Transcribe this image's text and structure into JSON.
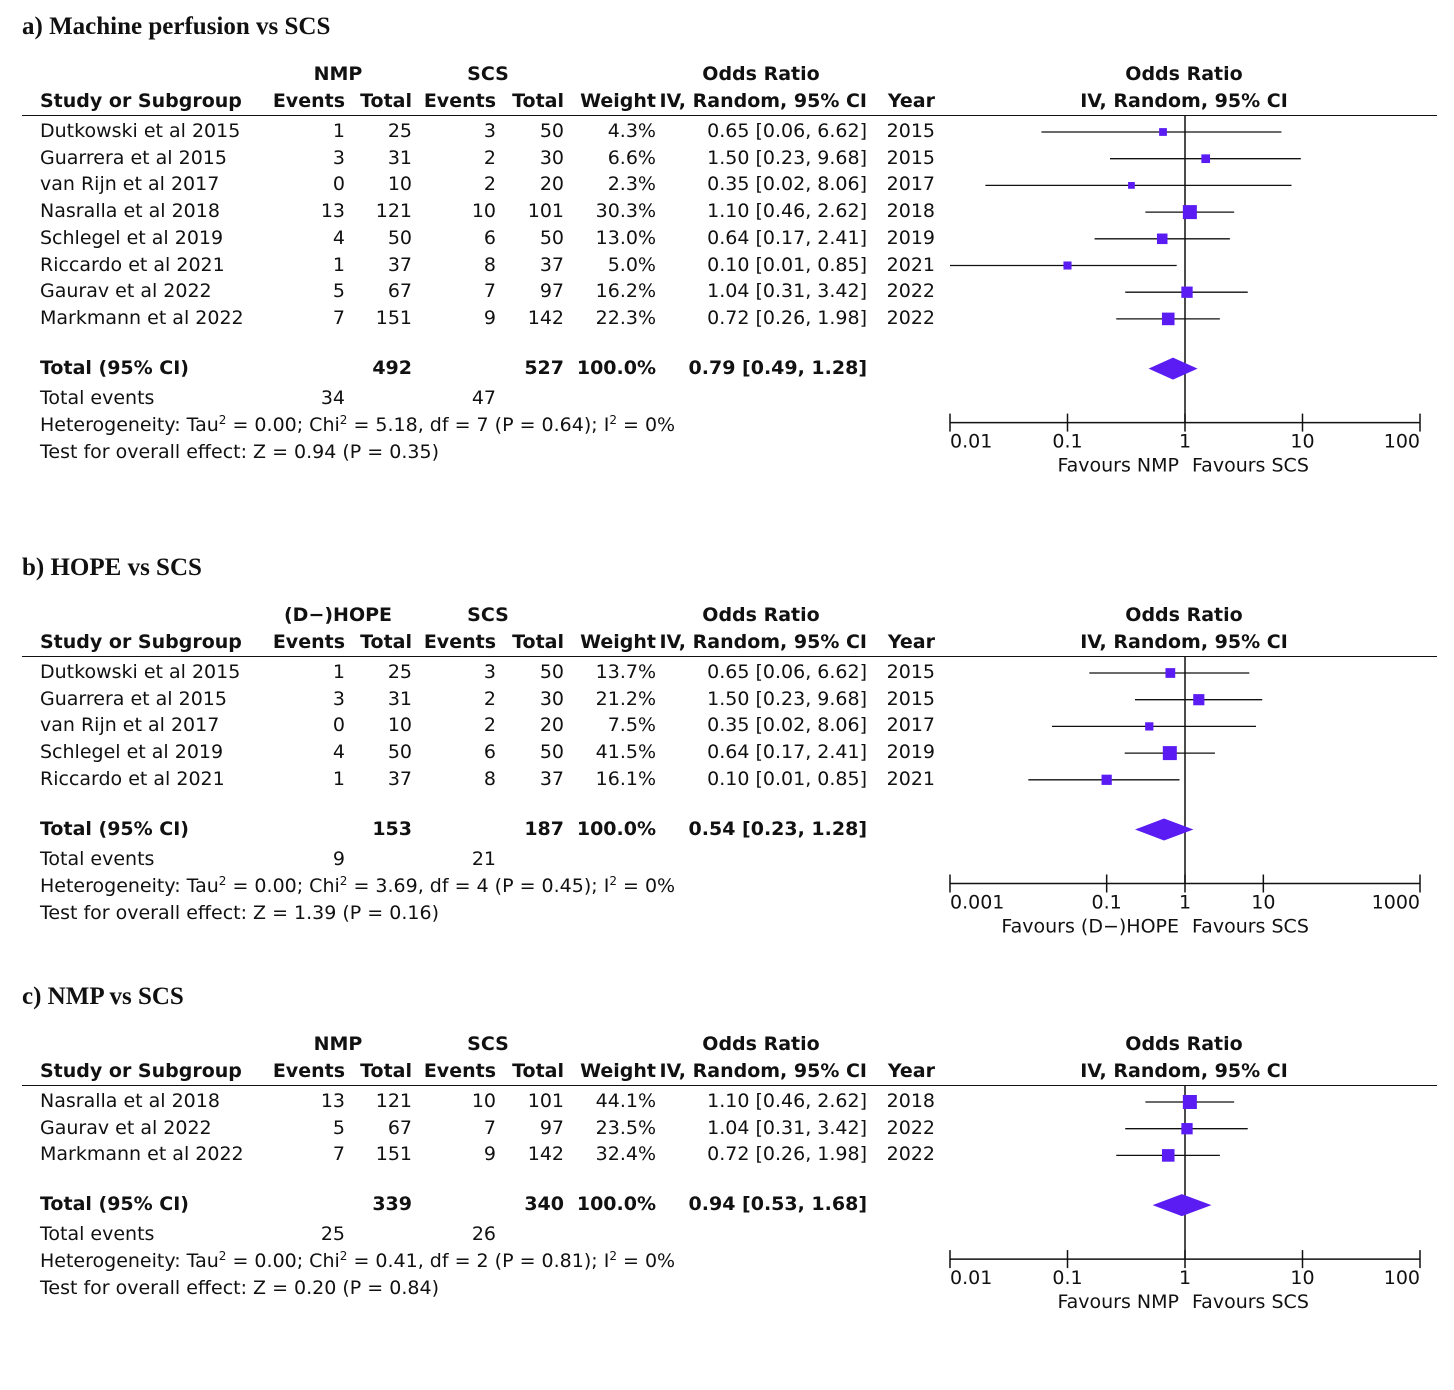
{
  "panels": [
    {
      "title": "a) Machine perfusion vs SCS",
      "group1": "NMP",
      "group2": "SCS",
      "col_study": "Study or Subgroup",
      "col_events": "Events",
      "col_total": "Total",
      "col_weight": "Weight",
      "col_or": "Odds Ratio",
      "col_or_sub": "IV, Random, 95% CI",
      "col_year": "Year",
      "rows": [
        {
          "study": "Dutkowski et al 2015",
          "e1": "1",
          "t1": "25",
          "e2": "3",
          "t2": "50",
          "weight": "4.3%",
          "ci": "0.65 [0.06, 6.62]",
          "year": "2015",
          "or": 0.65,
          "lo": 0.06,
          "hi": 6.62,
          "w": 4.3
        },
        {
          "study": "Guarrera et al 2015",
          "e1": "3",
          "t1": "31",
          "e2": "2",
          "t2": "30",
          "weight": "6.6%",
          "ci": "1.50 [0.23, 9.68]",
          "year": "2015",
          "or": 1.5,
          "lo": 0.23,
          "hi": 9.68,
          "w": 6.6
        },
        {
          "study": "van Rijn et al 2017",
          "e1": "0",
          "t1": "10",
          "e2": "2",
          "t2": "20",
          "weight": "2.3%",
          "ci": "0.35 [0.02, 8.06]",
          "year": "2017",
          "or": 0.35,
          "lo": 0.02,
          "hi": 8.06,
          "w": 2.3
        },
        {
          "study": "Nasralla et al 2018",
          "e1": "13",
          "t1": "121",
          "e2": "10",
          "t2": "101",
          "weight": "30.3%",
          "ci": "1.10 [0.46, 2.62]",
          "year": "2018",
          "or": 1.1,
          "lo": 0.46,
          "hi": 2.62,
          "w": 30.3
        },
        {
          "study": "Schlegel et al 2019",
          "e1": "4",
          "t1": "50",
          "e2": "6",
          "t2": "50",
          "weight": "13.0%",
          "ci": "0.64 [0.17, 2.41]",
          "year": "2019",
          "or": 0.64,
          "lo": 0.17,
          "hi": 2.41,
          "w": 13.0
        },
        {
          "study": "Riccardo et al 2021",
          "e1": "1",
          "t1": "37",
          "e2": "8",
          "t2": "37",
          "weight": "5.0%",
          "ci": "0.10 [0.01, 0.85]",
          "year": "2021",
          "or": 0.1,
          "lo": 0.01,
          "hi": 0.85,
          "w": 5.0
        },
        {
          "study": "Gaurav et al 2022",
          "e1": "5",
          "t1": "67",
          "e2": "7",
          "t2": "97",
          "weight": "16.2%",
          "ci": "1.04 [0.31, 3.42]",
          "year": "2022",
          "or": 1.04,
          "lo": 0.31,
          "hi": 3.42,
          "w": 16.2
        },
        {
          "study": "Markmann et al 2022",
          "e1": "7",
          "t1": "151",
          "e2": "9",
          "t2": "142",
          "weight": "22.3%",
          "ci": "0.72 [0.26, 1.98]",
          "year": "2022",
          "or": 0.72,
          "lo": 0.26,
          "hi": 1.98,
          "w": 22.3
        }
      ],
      "total": {
        "label": "Total (95% CI)",
        "t1": "492",
        "t2": "527",
        "weight": "100.0%",
        "ci": "0.79 [0.49, 1.28]",
        "or": 0.79,
        "lo": 0.49,
        "hi": 1.28
      },
      "events": {
        "label": "Total events",
        "e1": "34",
        "e2": "47"
      },
      "het_a": "Heterogeneity: Tau",
      "het_b": " = 0.00; Chi",
      "het_c": " = 5.18, df = 7 (P = 0.64); I",
      "het_d": " = 0%",
      "sup2": "2",
      "overall": "Test for overall effect: Z = 0.94 (P = 0.35)",
      "axis": {
        "min": 0.01,
        "max": 100,
        "ticks": [
          {
            "v": 0.01,
            "label": "0.01"
          },
          {
            "v": 0.1,
            "label": "0.1"
          },
          {
            "v": 1,
            "label": "1"
          },
          {
            "v": 10,
            "label": "10"
          },
          {
            "v": 100,
            "label": "100"
          }
        ]
      },
      "favours_left": "Favours NMP",
      "favours_right": "Favours SCS"
    },
    {
      "title": "b) HOPE vs SCS",
      "group1": "(D−)HOPE",
      "group2": "SCS",
      "col_study": "Study or Subgroup",
      "col_events": "Events",
      "col_total": "Total",
      "col_weight": "Weight",
      "col_or": "Odds Ratio",
      "col_or_sub": "IV, Random, 95% CI",
      "col_year": "Year",
      "rows": [
        {
          "study": "Dutkowski et al 2015",
          "e1": "1",
          "t1": "25",
          "e2": "3",
          "t2": "50",
          "weight": "13.7%",
          "ci": "0.65 [0.06, 6.62]",
          "year": "2015",
          "or": 0.65,
          "lo": 0.06,
          "hi": 6.62,
          "w": 13.7
        },
        {
          "study": "Guarrera et al 2015",
          "e1": "3",
          "t1": "31",
          "e2": "2",
          "t2": "30",
          "weight": "21.2%",
          "ci": "1.50 [0.23, 9.68]",
          "year": "2015",
          "or": 1.5,
          "lo": 0.23,
          "hi": 9.68,
          "w": 21.2
        },
        {
          "study": "van Rijn et al 2017",
          "e1": "0",
          "t1": "10",
          "e2": "2",
          "t2": "20",
          "weight": "7.5%",
          "ci": "0.35 [0.02, 8.06]",
          "year": "2017",
          "or": 0.35,
          "lo": 0.02,
          "hi": 8.06,
          "w": 7.5
        },
        {
          "study": "Schlegel et al 2019",
          "e1": "4",
          "t1": "50",
          "e2": "6",
          "t2": "50",
          "weight": "41.5%",
          "ci": "0.64 [0.17, 2.41]",
          "year": "2019",
          "or": 0.64,
          "lo": 0.17,
          "hi": 2.41,
          "w": 41.5
        },
        {
          "study": "Riccardo et al 2021",
          "e1": "1",
          "t1": "37",
          "e2": "8",
          "t2": "37",
          "weight": "16.1%",
          "ci": "0.10 [0.01, 0.85]",
          "year": "2021",
          "or": 0.1,
          "lo": 0.01,
          "hi": 0.85,
          "w": 16.1
        }
      ],
      "total": {
        "label": "Total (95% CI)",
        "t1": "153",
        "t2": "187",
        "weight": "100.0%",
        "ci": "0.54 [0.23, 1.28]",
        "or": 0.54,
        "lo": 0.23,
        "hi": 1.28
      },
      "events": {
        "label": "Total events",
        "e1": "9",
        "e2": "21"
      },
      "het_a": "Heterogeneity: Tau",
      "het_b": " = 0.00; Chi",
      "het_c": " = 3.69, df = 4 (P = 0.45); I",
      "het_d": " = 0%",
      "sup2": "2",
      "overall": "Test for overall effect: Z = 1.39 (P = 0.16)",
      "axis": {
        "min": 0.001,
        "max": 1000,
        "ticks": [
          {
            "v": 0.001,
            "label": "0.001"
          },
          {
            "v": 0.1,
            "label": "0.1"
          },
          {
            "v": 1,
            "label": "1"
          },
          {
            "v": 10,
            "label": "10"
          },
          {
            "v": 1000,
            "label": "1000"
          }
        ]
      },
      "favours_left": "Favours (D−)HOPE",
      "favours_right": "Favours SCS"
    },
    {
      "title": "c) NMP vs SCS",
      "group1": "NMP",
      "group2": "SCS",
      "col_study": "Study or Subgroup",
      "col_events": "Events",
      "col_total": "Total",
      "col_weight": "Weight",
      "col_or": "Odds Ratio",
      "col_or_sub": "IV, Random, 95% CI",
      "col_year": "Year",
      "rows": [
        {
          "study": "Nasralla et al 2018",
          "e1": "13",
          "t1": "121",
          "e2": "10",
          "t2": "101",
          "weight": "44.1%",
          "ci": "1.10 [0.46, 2.62]",
          "year": "2018",
          "or": 1.1,
          "lo": 0.46,
          "hi": 2.62,
          "w": 44.1
        },
        {
          "study": "Gaurav et al 2022",
          "e1": "5",
          "t1": "67",
          "e2": "7",
          "t2": "97",
          "weight": "23.5%",
          "ci": "1.04 [0.31, 3.42]",
          "year": "2022",
          "or": 1.04,
          "lo": 0.31,
          "hi": 3.42,
          "w": 23.5
        },
        {
          "study": "Markmann et al 2022",
          "e1": "7",
          "t1": "151",
          "e2": "9",
          "t2": "142",
          "weight": "32.4%",
          "ci": "0.72 [0.26, 1.98]",
          "year": "2022",
          "or": 0.72,
          "lo": 0.26,
          "hi": 1.98,
          "w": 32.4
        }
      ],
      "total": {
        "label": "Total (95% CI)",
        "t1": "339",
        "t2": "340",
        "weight": "100.0%",
        "ci": "0.94 [0.53, 1.68]",
        "or": 0.94,
        "lo": 0.53,
        "hi": 1.68
      },
      "events": {
        "label": "Total events",
        "e1": "25",
        "e2": "26"
      },
      "het_a": "Heterogeneity: Tau",
      "het_b": " = 0.00; Chi",
      "het_c": " = 0.41, df = 2 (P = 0.81); I",
      "het_d": " = 0%",
      "sup2": "2",
      "overall": "Test for overall effect: Z = 0.20 (P = 0.84)",
      "axis": {
        "min": 0.01,
        "max": 100,
        "ticks": [
          {
            "v": 0.01,
            "label": "0.01"
          },
          {
            "v": 0.1,
            "label": "0.1"
          },
          {
            "v": 1,
            "label": "1"
          },
          {
            "v": 10,
            "label": "10"
          },
          {
            "v": 100,
            "label": "100"
          }
        ]
      },
      "favours_left": "Favours NMP",
      "favours_right": "Favours SCS"
    }
  ],
  "colors": {
    "marker": "#5a1cf2",
    "ink": "#111111"
  },
  "chart_data": [
    {
      "type": "scatter",
      "title": "a) Machine perfusion vs SCS",
      "xlabel": "Odds Ratio IV, Random, 95% CI (log scale)",
      "xlim": [
        0.01,
        100
      ],
      "categories": [
        "Dutkowski et al 2015",
        "Guarrera et al 2015",
        "van Rijn et al 2017",
        "Nasralla et al 2018",
        "Schlegel et al 2019",
        "Riccardo et al 2021",
        "Gaurav et al 2022",
        "Markmann et al 2022",
        "Total (95% CI)"
      ],
      "series": [
        {
          "name": "Odds Ratio",
          "values": [
            0.65,
            1.5,
            0.35,
            1.1,
            0.64,
            0.1,
            1.04,
            0.72,
            0.79
          ]
        },
        {
          "name": "Lower CI",
          "values": [
            0.06,
            0.23,
            0.02,
            0.46,
            0.17,
            0.01,
            0.31,
            0.26,
            0.49
          ]
        },
        {
          "name": "Upper CI",
          "values": [
            6.62,
            9.68,
            8.06,
            2.62,
            2.41,
            0.85,
            3.42,
            1.98,
            1.28
          ]
        }
      ]
    },
    {
      "type": "scatter",
      "title": "b) HOPE vs SCS",
      "xlabel": "Odds Ratio IV, Random, 95% CI (log scale)",
      "xlim": [
        0.001,
        1000
      ],
      "categories": [
        "Dutkowski et al 2015",
        "Guarrera et al 2015",
        "van Rijn et al 2017",
        "Schlegel et al 2019",
        "Riccardo et al 2021",
        "Total (95% CI)"
      ],
      "series": [
        {
          "name": "Odds Ratio",
          "values": [
            0.65,
            1.5,
            0.35,
            0.64,
            0.1,
            0.54
          ]
        },
        {
          "name": "Lower CI",
          "values": [
            0.06,
            0.23,
            0.02,
            0.17,
            0.01,
            0.23
          ]
        },
        {
          "name": "Upper CI",
          "values": [
            6.62,
            9.68,
            8.06,
            2.41,
            0.85,
            1.28
          ]
        }
      ]
    },
    {
      "type": "scatter",
      "title": "c) NMP vs SCS",
      "xlabel": "Odds Ratio IV, Random, 95% CI (log scale)",
      "xlim": [
        0.01,
        100
      ],
      "categories": [
        "Nasralla et al 2018",
        "Gaurav et al 2022",
        "Markmann et al 2022",
        "Total (95% CI)"
      ],
      "series": [
        {
          "name": "Odds Ratio",
          "values": [
            1.1,
            1.04,
            0.72,
            0.94
          ]
        },
        {
          "name": "Lower CI",
          "values": [
            0.46,
            0.31,
            0.26,
            0.53
          ]
        },
        {
          "name": "Upper CI",
          "values": [
            2.62,
            3.42,
            1.98,
            1.68
          ]
        }
      ]
    }
  ]
}
